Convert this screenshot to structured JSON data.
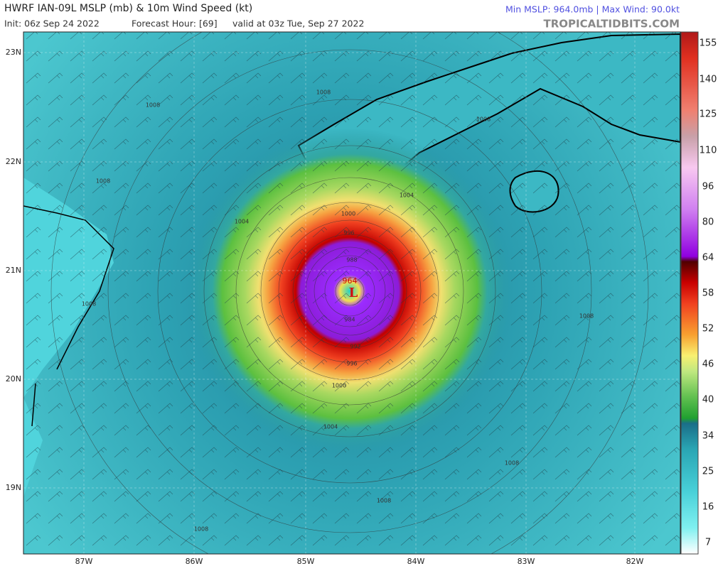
{
  "header": {
    "title": "HWRF IAN-09L MSLP (mb) & 10m Wind Speed (kt)",
    "init": "Init: 06z Sep 24 2022",
    "forecast": "Forecast Hour: [69]",
    "valid": "valid at 03z Tue, Sep 27 2022",
    "stats": "Min MSLP: 964.0mb | Max Wind: 90.0kt",
    "credit": "TROPICALTIDBITS.COM"
  },
  "map": {
    "lat_labels": [
      "23N",
      "22N",
      "21N",
      "20N",
      "19N"
    ],
    "lon_labels": [
      "87W",
      "86W",
      "85W",
      "84W",
      "83W",
      "82W"
    ],
    "isobar_labels": [
      "1008",
      "1008",
      "1008",
      "1008",
      "1008",
      "1008",
      "1008",
      "1008",
      "1008",
      "1004",
      "1004",
      "1004",
      "1000",
      "1000",
      "996",
      "996",
      "992",
      "988",
      "984"
    ],
    "center_label": "L",
    "center_pressure": "964"
  },
  "colorbar": {
    "labels": [
      "155",
      "140",
      "125",
      "110",
      "96",
      "80",
      "64",
      "58",
      "52",
      "46",
      "40",
      "34",
      "25",
      "16",
      "7"
    ]
  }
}
